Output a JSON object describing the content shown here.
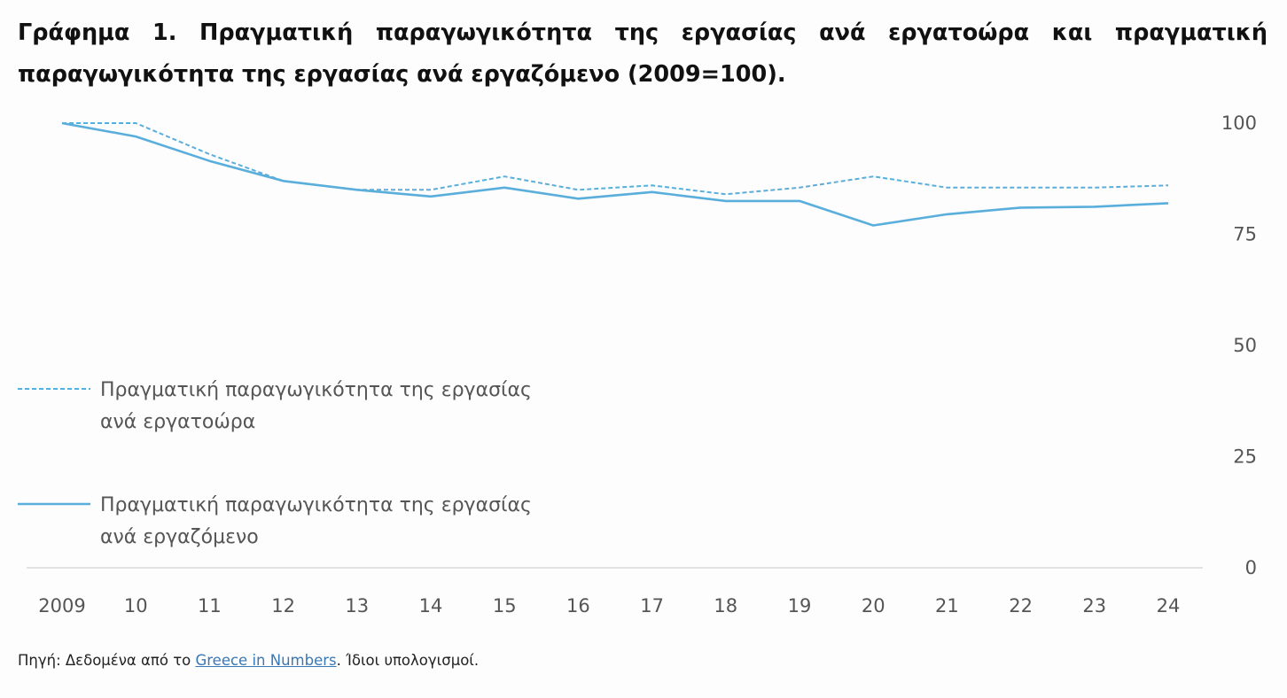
{
  "title": "Γράφημα 1. Πραγματική παραγωγικότητα της εργασίας ανά εργατοώρα και πραγματική παραγωγικότητα της εργασίας ανά εργαζόμενο (2009=100).",
  "source": {
    "prefix": "Πηγή: Δεδομένα από το ",
    "link": "Greece in Numbers",
    "suffix": ". Ίδιοι υπολογισμοί."
  },
  "colors": {
    "series": "#5aaedc",
    "axis": "#d9d9d9",
    "text": "#555555"
  },
  "chart_data": {
    "type": "line",
    "title": "Γράφημα 1. Πραγματική παραγωγικότητα της εργασίας ανά εργατοώρα και πραγματική παραγωγικότητα της εργασίας ανά εργαζόμενο (2009=100).",
    "x": [
      "2009",
      "10",
      "11",
      "12",
      "13",
      "14",
      "15",
      "16",
      "17",
      "18",
      "19",
      "20",
      "21",
      "22",
      "23",
      "24"
    ],
    "ylim": [
      0,
      100
    ],
    "yticks": [
      0,
      25,
      50,
      75,
      100
    ],
    "y_axis_position": "right",
    "grid": false,
    "legend_position": "left",
    "series": [
      {
        "name": "Πραγματική παραγωγικότητα της εργασίας ανά εργατοώρα",
        "style": "dashed",
        "legend_lines": [
          "Πραγματική παραγωγικότητα της εργασίας",
          "ανά εργατοώρα"
        ],
        "values": [
          100,
          100,
          93,
          87,
          85,
          85,
          88,
          85,
          86,
          84,
          85.5,
          88,
          85.5,
          85.5,
          85.5,
          86
        ]
      },
      {
        "name": "Πραγματική παραγωγικότητα της εργασίας ανά εργαζόμενο",
        "style": "solid",
        "legend_lines": [
          "Πραγματική παραγωγικότητα της εργασίας",
          "ανά εργαζόμενο"
        ],
        "values": [
          100,
          97,
          91.5,
          87,
          85,
          83.5,
          85.5,
          83,
          84.5,
          82.5,
          82.5,
          77,
          79.5,
          81,
          81.2,
          82
        ]
      }
    ]
  }
}
